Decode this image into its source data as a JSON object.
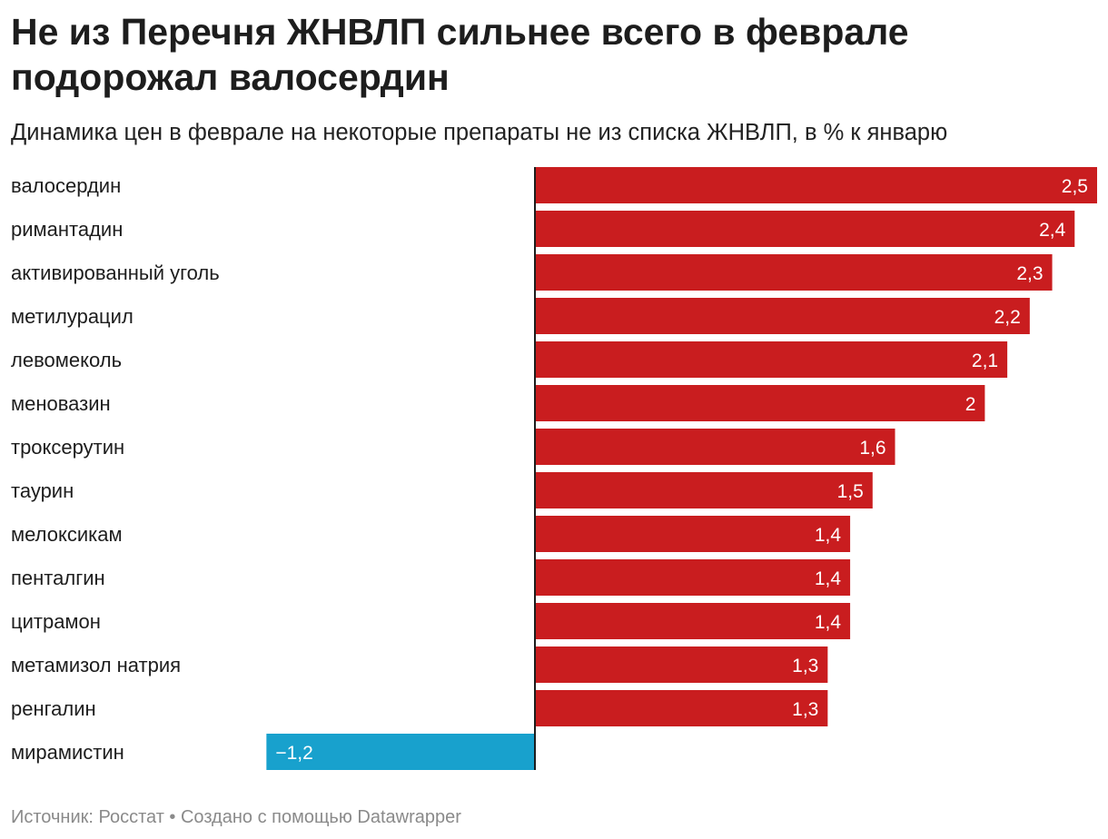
{
  "title": "Не из Перечня ЖНВЛП сильнее всего в феврале подорожал валосердин",
  "subtitle": "Динамика цен в феврале на некоторые препараты не из списка ЖНВЛП, в % к январю",
  "footer": {
    "source": "Источник: Росстат",
    "separator": " • ",
    "credit": "Создано с помощью Datawrapper"
  },
  "colors": {
    "positive": "#c91d1f",
    "negative": "#18a1cd",
    "axis": "#1d1d1d"
  },
  "chart_data": {
    "type": "bar",
    "orientation": "horizontal",
    "categories": [
      "валосердин",
      "римантадин",
      "активированный уголь",
      "метилурацил",
      "левомеколь",
      "меновазин",
      "троксерутин",
      "таурин",
      "мелоксикам",
      "пенталгин",
      "цитрамон",
      "метамизол натрия",
      "ренгалин",
      "мирамистин"
    ],
    "values": [
      2.5,
      2.4,
      2.3,
      2.2,
      2.1,
      2,
      1.6,
      1.5,
      1.4,
      1.4,
      1.4,
      1.3,
      1.3,
      -1.2
    ],
    "value_labels": [
      "2,5",
      "2,4",
      "2,3",
      "2,2",
      "2,1",
      "2",
      "1,6",
      "1,5",
      "1,4",
      "1,4",
      "1,4",
      "1,3",
      "1,3",
      "−1,2"
    ],
    "xlim": [
      -1.2,
      2.5
    ],
    "grid": false,
    "legend": "none"
  }
}
